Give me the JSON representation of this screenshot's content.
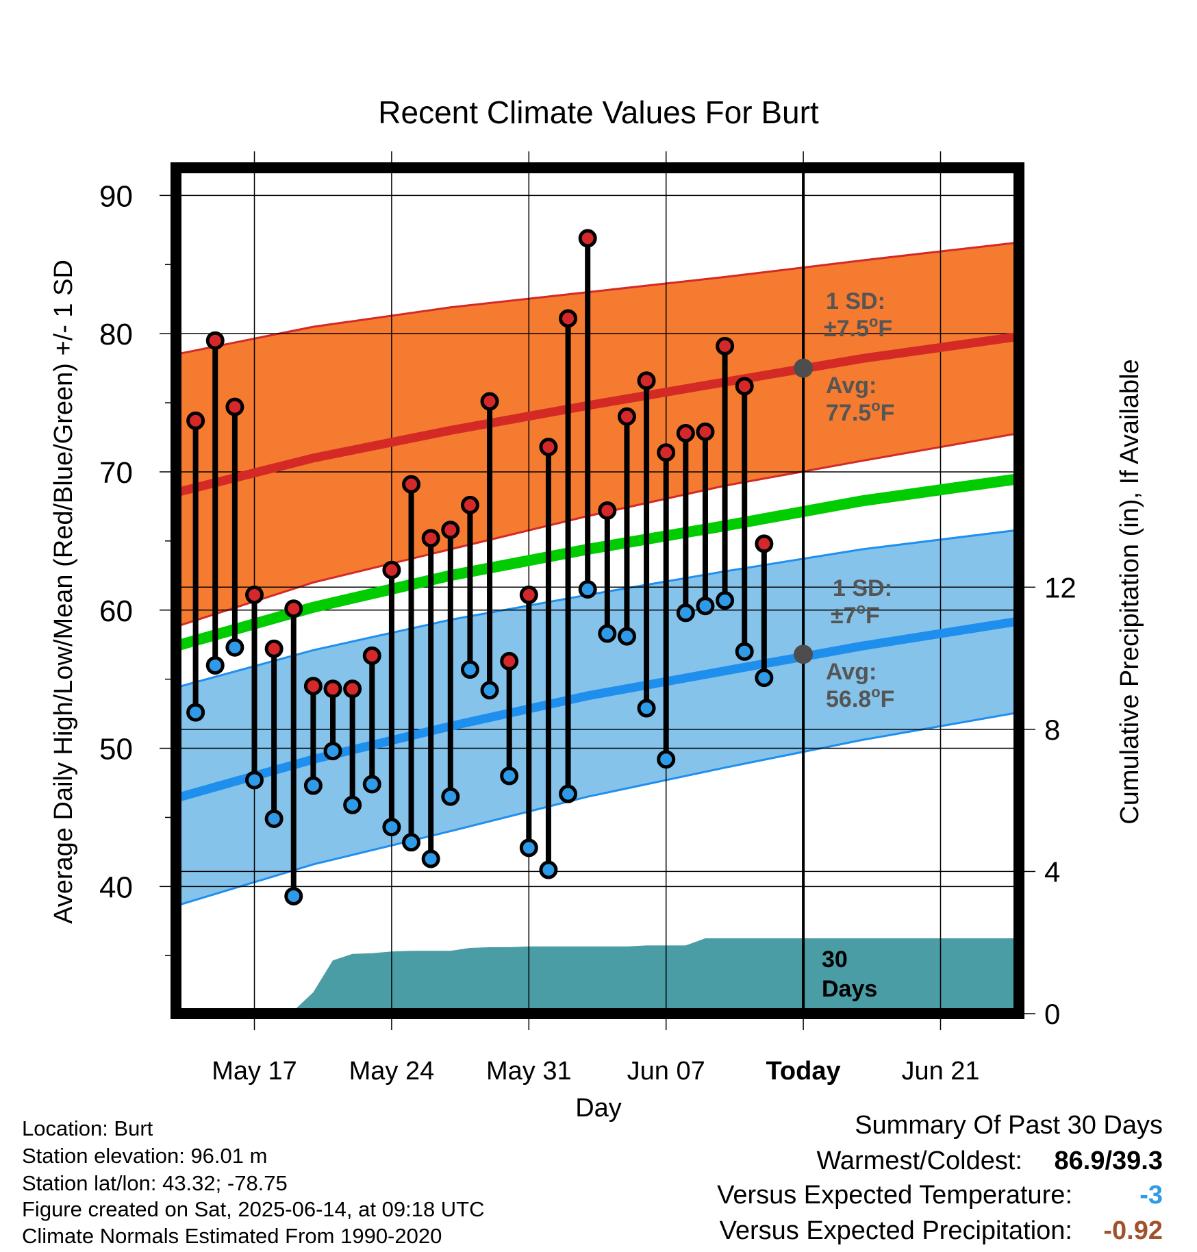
{
  "chart_data": {
    "type": "line",
    "title": "Recent Climate Values For Burt",
    "xlabel": "Day",
    "ylabel": "Average Daily High/Low/Mean (Red/Blue/Green) +/- 1 SD",
    "ylabel_right": "Cumulative Precipitation (in), If Available",
    "x_range": [
      "2025-05-13",
      "2025-06-25"
    ],
    "ylim": [
      30.8,
      92
    ],
    "ylim_right": [
      0,
      23.8
    ],
    "x_tick_labels": [
      {
        "date": "2025-05-17",
        "label": "May 17"
      },
      {
        "date": "2025-05-24",
        "label": "May 24"
      },
      {
        "date": "2025-05-31",
        "label": "May 31"
      },
      {
        "date": "2025-06-07",
        "label": "Jun 07"
      },
      {
        "date": "2025-06-14",
        "label": "Today"
      },
      {
        "date": "2025-06-21",
        "label": "Jun 21"
      }
    ],
    "y_ticks": [
      40,
      50,
      60,
      70,
      80,
      90
    ],
    "y_ticks_right": [
      0,
      4,
      8,
      12
    ],
    "grid": true,
    "colors": {
      "high_band": "#f47b30",
      "high_mean": "#d42a26",
      "low_band": "#86c3ea",
      "low_mean": "#1f8fee",
      "mean": "#00cc00",
      "precip": "#4a9ca5",
      "marker_high": "#d4282a",
      "marker_low": "#2f9be8",
      "today_marker": "#4d4d4d",
      "text_annot": "#555555",
      "value_cold": "#2f9be8",
      "value_dry": "#a0522d"
    },
    "normals": {
      "x": [
        "2025-05-13",
        "2025-05-20",
        "2025-05-27",
        "2025-06-03",
        "2025-06-10",
        "2025-06-17",
        "2025-06-25"
      ],
      "high_mean": [
        68.5,
        71.0,
        73.0,
        74.8,
        76.5,
        78.2,
        79.8
      ],
      "high_plus_sd": [
        78.5,
        80.5,
        81.9,
        83.0,
        84.1,
        85.3,
        86.6
      ],
      "high_minus_sd": [
        58.8,
        62.0,
        64.4,
        66.8,
        69.0,
        70.8,
        72.8
      ],
      "low_mean": [
        46.4,
        49.2,
        51.6,
        53.8,
        55.6,
        57.4,
        59.2
      ],
      "low_plus_sd": [
        54.4,
        57.1,
        59.3,
        61.1,
        62.8,
        64.4,
        65.8
      ],
      "low_minus_sd": [
        38.6,
        41.6,
        44.0,
        46.5,
        48.6,
        50.6,
        52.6
      ],
      "mean": [
        57.4,
        60.2,
        62.5,
        64.4,
        66.1,
        67.9,
        69.5
      ]
    },
    "series": [
      {
        "name": "Daily High",
        "x": [
          "2025-05-14",
          "2025-05-15",
          "2025-05-16",
          "2025-05-17",
          "2025-05-18",
          "2025-05-19",
          "2025-05-20",
          "2025-05-21",
          "2025-05-22",
          "2025-05-23",
          "2025-05-24",
          "2025-05-25",
          "2025-05-26",
          "2025-05-27",
          "2025-05-28",
          "2025-05-29",
          "2025-05-30",
          "2025-05-31",
          "2025-06-01",
          "2025-06-02",
          "2025-06-03",
          "2025-06-04",
          "2025-06-05",
          "2025-06-06",
          "2025-06-07",
          "2025-06-08",
          "2025-06-09",
          "2025-06-10",
          "2025-06-11",
          "2025-06-12",
          "2025-06-13"
        ],
        "values": [
          73.7,
          79.5,
          74.7,
          61.1,
          57.2,
          60.1,
          54.5,
          54.3,
          54.3,
          56.7,
          62.9,
          69.1,
          65.2,
          65.8,
          67.6,
          75.1,
          56.3,
          61.1,
          71.8,
          81.1,
          86.9,
          67.2,
          74.0,
          76.6,
          71.4,
          72.8,
          72.9,
          79.1,
          76.2,
          64.8,
          null
        ]
      },
      {
        "name": "Daily Low",
        "x": [
          "2025-05-14",
          "2025-05-15",
          "2025-05-16",
          "2025-05-17",
          "2025-05-18",
          "2025-05-19",
          "2025-05-20",
          "2025-05-21",
          "2025-05-22",
          "2025-05-23",
          "2025-05-24",
          "2025-05-25",
          "2025-05-26",
          "2025-05-27",
          "2025-05-28",
          "2025-05-29",
          "2025-05-30",
          "2025-05-31",
          "2025-06-01",
          "2025-06-02",
          "2025-06-03",
          "2025-06-04",
          "2025-06-05",
          "2025-06-06",
          "2025-06-07",
          "2025-06-08",
          "2025-06-09",
          "2025-06-10",
          "2025-06-11",
          "2025-06-12",
          "2025-06-13"
        ],
        "values": [
          52.6,
          56.0,
          57.3,
          47.7,
          44.9,
          39.3,
          47.3,
          49.8,
          45.9,
          47.4,
          44.3,
          43.2,
          42.0,
          46.5,
          55.7,
          54.2,
          48.0,
          42.8,
          41.2,
          46.7,
          61.5,
          58.3,
          58.1,
          52.9,
          49.2,
          59.8,
          60.3,
          60.7,
          57.0,
          55.1,
          null
        ]
      },
      {
        "name": "Cumulative Precipitation",
        "x": [
          "2025-05-13",
          "2025-05-14",
          "2025-05-15",
          "2025-05-16",
          "2025-05-17",
          "2025-05-18",
          "2025-05-19",
          "2025-05-20",
          "2025-05-21",
          "2025-05-22",
          "2025-05-23",
          "2025-05-24",
          "2025-05-25",
          "2025-05-26",
          "2025-05-27",
          "2025-05-28",
          "2025-05-29",
          "2025-05-30",
          "2025-05-31",
          "2025-06-01",
          "2025-06-02",
          "2025-06-03",
          "2025-06-04",
          "2025-06-05",
          "2025-06-06",
          "2025-06-07",
          "2025-06-08",
          "2025-06-09",
          "2025-06-10",
          "2025-06-11",
          "2025-06-12",
          "2025-06-13",
          "2025-06-14",
          "2025-06-25"
        ],
        "values": [
          0.05,
          0.05,
          0.07,
          0.07,
          0.07,
          0.08,
          0.08,
          0.6,
          1.5,
          1.68,
          1.7,
          1.75,
          1.77,
          1.77,
          1.77,
          1.85,
          1.87,
          1.87,
          1.89,
          1.89,
          1.89,
          1.89,
          1.89,
          1.89,
          1.92,
          1.92,
          1.92,
          2.12,
          2.12,
          2.12,
          2.12,
          2.12,
          2.12,
          2.12
        ]
      }
    ],
    "today": {
      "date": "2025-06-14",
      "avg_high": 77.5,
      "avg_low": 56.8,
      "high_label": "Avg:",
      "high_value": "77.5",
      "low_label": "Avg:",
      "low_value": "56.8",
      "high_sd_label": "1 SD:",
      "high_sd_value": "±7.5",
      "low_sd_label": "1 SD:",
      "low_sd_value": "±7",
      "deg_unit": "o",
      "temp_unit": "F",
      "precip_label_1": "30",
      "precip_label_2": "Days"
    }
  },
  "info": {
    "location": "Location: Burt",
    "elevation": "Station elevation: 96.01 m",
    "latlon": "Station lat/lon: 43.32; -78.75",
    "created": "Figure created on Sat, 2025-06-14, at 09:18 UTC",
    "normals": "Climate Normals Estimated From 1990-2020"
  },
  "summary": {
    "title": "Summary Of Past 30 Days",
    "warm_cold_label": "Warmest/Coldest:",
    "warm_cold_value": "86.9/39.3",
    "temp_label": "Versus Expected Temperature:",
    "temp_value": "-3",
    "precip_label": "Versus Expected Precipitation:",
    "precip_value": "-0.92"
  }
}
